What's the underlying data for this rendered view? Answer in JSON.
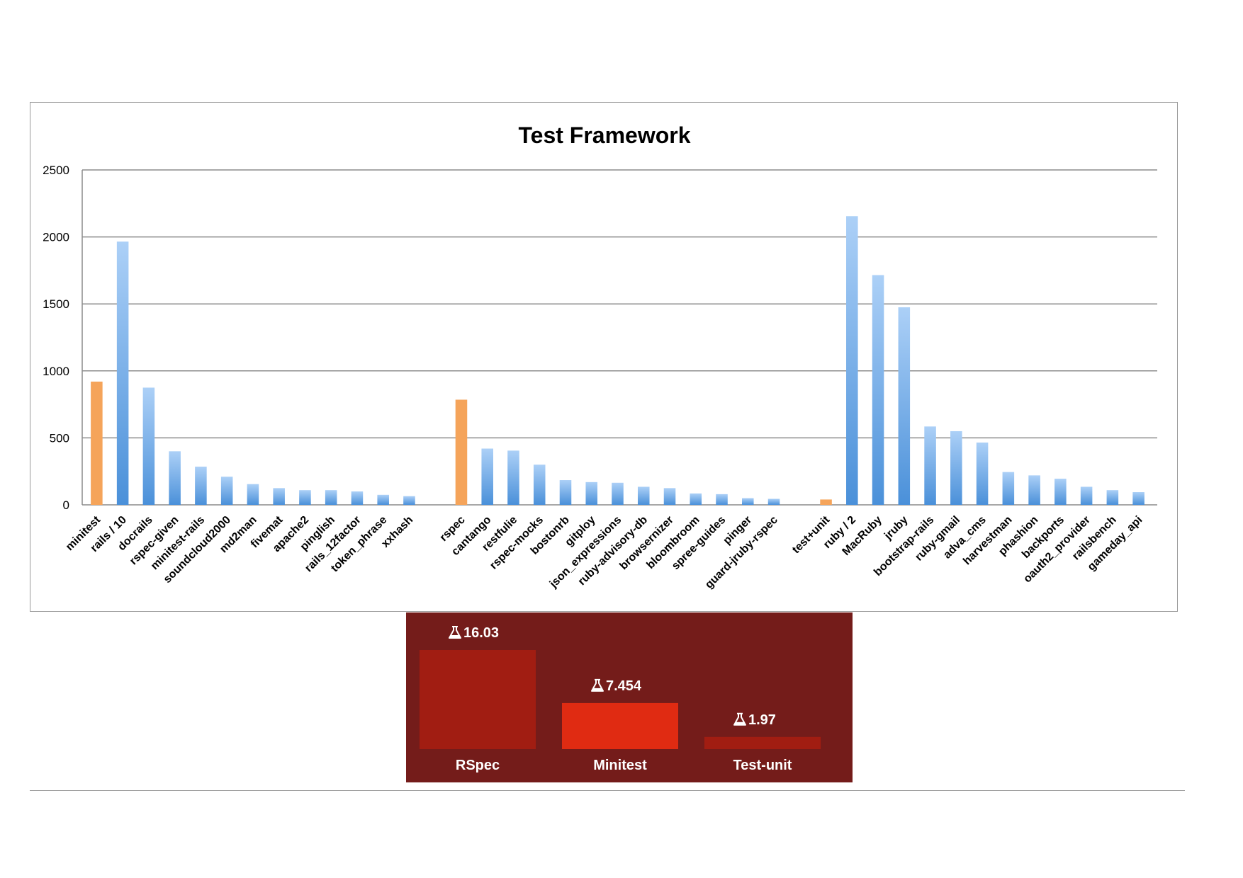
{
  "chart_data": [
    {
      "type": "bar",
      "title": "Test Framework",
      "xlabel": "",
      "ylabel": "",
      "ylim": [
        0,
        2500
      ],
      "yticks": [
        0,
        500,
        1000,
        1500,
        2000,
        2500
      ],
      "grid": true,
      "legend": "none",
      "colors": {
        "highlight": "#f5a45a",
        "bar_top": "#acd0f7",
        "bar_bottom": "#4a90d9",
        "grid": "#8c8c8c"
      },
      "categories": [
        "minitest",
        "rails / 10",
        "docrails",
        "rspec-given",
        "minitest-rails",
        "soundcloud2000",
        "md2man",
        "fivemat",
        "apache2",
        "pinglish",
        "rails_12factor",
        "token_phrase",
        "xxhash",
        "rspec",
        "cantango",
        "restfulie",
        "rspec-mocks",
        "bostonrb",
        "gitploy",
        "json_expressions",
        "ruby-advisory-db",
        "browsernizer",
        "bloombroom",
        "spree-guides",
        "pinger",
        "guard-jruby-rspec",
        "test+unit",
        "ruby / 2",
        "MacRuby",
        "jruby",
        "bootstrap-rails",
        "ruby-gmail",
        "adva_cms",
        "harvestman",
        "phashion",
        "backports",
        "oauth2_provider",
        "railsbench",
        "gameday_api"
      ],
      "values": [
        920,
        1965,
        875,
        400,
        285,
        210,
        155,
        125,
        110,
        110,
        100,
        75,
        65,
        785,
        420,
        405,
        300,
        185,
        170,
        165,
        135,
        125,
        85,
        80,
        50,
        45,
        40,
        2155,
        1715,
        1475,
        585,
        550,
        465,
        245,
        220,
        195,
        135,
        110,
        95
      ],
      "highlighted": [
        "minitest",
        "rspec",
        "test+unit"
      ]
    },
    {
      "type": "bar",
      "title": "",
      "categories": [
        "RSpec",
        "Minitest",
        "Test-unit"
      ],
      "values": [
        16.03,
        7.454,
        1.97
      ],
      "value_labels": [
        "16.03",
        "7.454",
        "1.97"
      ],
      "icon": "flask-icon",
      "colors": {
        "background": "#741c1a",
        "RSpec": "#a11d12",
        "Minitest": "#e02b12",
        "Test-unit": "#a11d12"
      }
    }
  ]
}
